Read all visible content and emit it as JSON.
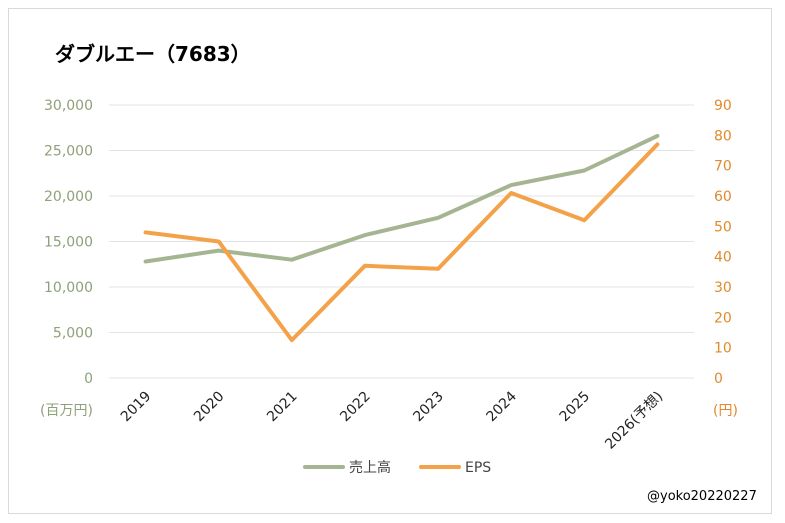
{
  "chart_data": {
    "type": "line",
    "title": "ダブルエー（7683）",
    "categories": [
      "2019",
      "2020",
      "2021",
      "2022",
      "2023",
      "2024",
      "2025",
      "2026(予想)"
    ],
    "series": [
      {
        "name": "売上高",
        "axis": "left",
        "color": "#a5b592",
        "values": [
          12800,
          14000,
          13000,
          15700,
          17600,
          21200,
          22800,
          26600
        ]
      },
      {
        "name": "EPS",
        "axis": "right",
        "color": "#f4a24a",
        "values": [
          48,
          45,
          12.5,
          37,
          36,
          61,
          52,
          77
        ]
      }
    ],
    "y_left": {
      "min": 0,
      "max": 30000,
      "step": 5000,
      "ticks": [
        "0",
        "5,000",
        "10,000",
        "15,000",
        "20,000",
        "25,000",
        "30,000"
      ],
      "unit": "(百万円)",
      "color": "#8ea17a"
    },
    "y_right": {
      "min": 0,
      "max": 90,
      "step": 10,
      "ticks": [
        "0",
        "10",
        "20",
        "30",
        "40",
        "50",
        "60",
        "70",
        "80",
        "90"
      ],
      "unit": "(円)",
      "color": "#e08a2c"
    },
    "grid": true,
    "legend": "bottom-center",
    "credit": "@yoko20220227"
  }
}
